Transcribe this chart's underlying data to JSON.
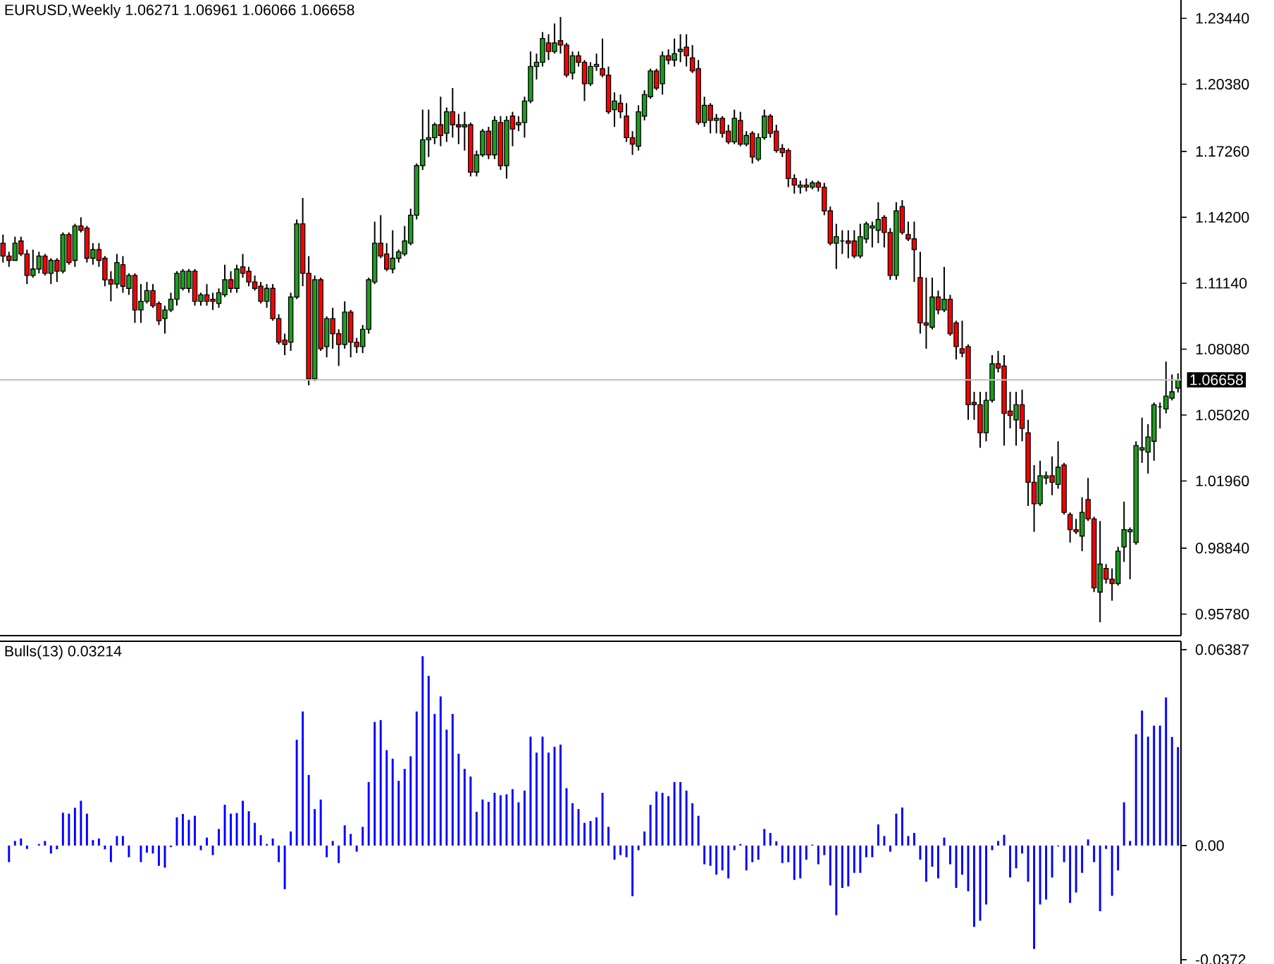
{
  "chart_data": [
    {
      "type": "candlestick",
      "title": "EURUSD,Weekly  1.06271 1.06961 1.06066 1.06658",
      "categories": [
        null,
        null,
        null,
        null,
        null,
        null,
        null,
        null,
        null,
        null,
        null,
        null,
        null,
        null,
        null,
        null,
        null,
        null,
        null,
        null,
        null,
        null,
        null,
        null,
        null,
        null,
        null,
        null,
        null,
        null,
        null,
        null,
        null,
        null,
        null,
        null,
        null,
        null,
        null,
        null,
        null,
        null,
        null,
        null,
        null,
        null,
        null,
        null,
        null,
        null,
        null,
        null,
        null,
        null,
        null,
        null,
        null,
        null,
        null,
        null,
        null,
        null,
        null,
        null,
        null,
        null,
        null,
        null,
        null,
        null,
        null,
        null,
        null,
        null,
        null,
        null,
        null,
        null,
        null,
        null,
        null,
        null,
        null,
        null,
        null,
        null,
        null,
        null,
        null,
        null,
        null,
        null,
        null,
        null,
        null,
        null,
        null,
        null,
        null,
        null,
        null,
        null,
        null,
        null,
        null,
        null,
        null,
        null,
        null,
        null,
        null,
        null,
        null,
        null,
        null,
        null,
        null,
        null,
        null,
        null,
        null,
        null,
        null,
        null,
        null,
        null,
        null,
        null,
        null,
        null,
        null,
        null,
        null,
        null,
        null,
        null,
        null,
        null,
        null,
        null,
        null,
        null,
        null,
        null,
        null,
        null,
        null,
        null,
        null,
        null,
        null,
        null,
        null,
        null,
        null,
        null,
        null,
        null,
        null,
        null,
        null,
        null,
        null,
        null,
        null,
        null,
        null,
        null,
        null,
        null,
        null,
        null,
        null,
        null,
        null,
        null,
        null,
        null,
        null,
        null,
        null,
        null,
        null,
        null,
        null,
        null,
        null,
        null,
        null,
        null,
        null,
        null,
        null,
        null,
        null,
        null,
        null
      ],
      "ohlc": [
        [
          1.13,
          1.134,
          1.121,
          1.124
        ],
        [
          1.124,
          1.126,
          1.119,
          1.122
        ],
        [
          1.122,
          1.133,
          1.122,
          1.13
        ],
        [
          1.131,
          1.133,
          1.124,
          1.125
        ],
        [
          1.125,
          1.127,
          1.111,
          1.115
        ],
        [
          1.115,
          1.127,
          1.114,
          1.118
        ],
        [
          1.118,
          1.126,
          1.116,
          1.124
        ],
        [
          1.124,
          1.125,
          1.115,
          1.116
        ],
        [
          1.116,
          1.123,
          1.111,
          1.122
        ],
        [
          1.122,
          1.123,
          1.112,
          1.117
        ],
        [
          1.117,
          1.135,
          1.116,
          1.134
        ],
        [
          1.134,
          1.135,
          1.12,
          1.121
        ],
        [
          1.122,
          1.139,
          1.119,
          1.138
        ],
        [
          1.138,
          1.142,
          1.135,
          1.136
        ],
        [
          1.137,
          1.138,
          1.121,
          1.123
        ],
        [
          1.123,
          1.13,
          1.12,
          1.127
        ],
        [
          1.127,
          1.13,
          1.119,
          1.122
        ],
        [
          1.123,
          1.124,
          1.11,
          1.113
        ],
        [
          1.113,
          1.117,
          1.103,
          1.111
        ],
        [
          1.111,
          1.125,
          1.109,
          1.121
        ],
        [
          1.12,
          1.124,
          1.107,
          1.11
        ],
        [
          1.109,
          1.116,
          1.106,
          1.115
        ],
        [
          1.115,
          1.116,
          1.093,
          1.099
        ],
        [
          1.099,
          1.111,
          1.093,
          1.103
        ],
        [
          1.103,
          1.112,
          1.102,
          1.108
        ],
        [
          1.108,
          1.111,
          1.1,
          1.101
        ],
        [
          1.102,
          1.103,
          1.092,
          1.094
        ],
        [
          1.095,
          1.101,
          1.088,
          1.099
        ],
        [
          1.099,
          1.107,
          1.098,
          1.104
        ],
        [
          1.104,
          1.117,
          1.101,
          1.116
        ],
        [
          1.109,
          1.118,
          1.108,
          1.117
        ],
        [
          1.109,
          1.118,
          1.107,
          1.117
        ],
        [
          1.117,
          1.118,
          1.101,
          1.103
        ],
        [
          1.103,
          1.107,
          1.101,
          1.106
        ],
        [
          1.106,
          1.111,
          1.101,
          1.103
        ],
        [
          1.104,
          1.107,
          1.099,
          1.103
        ],
        [
          1.102,
          1.109,
          1.1,
          1.107
        ],
        [
          1.106,
          1.12,
          1.105,
          1.113
        ],
        [
          1.113,
          1.117,
          1.107,
          1.109
        ],
        [
          1.109,
          1.12,
          1.107,
          1.118
        ],
        [
          1.119,
          1.125,
          1.114,
          1.116
        ],
        [
          1.117,
          1.119,
          1.11,
          1.112
        ],
        [
          1.112,
          1.115,
          1.108,
          1.109
        ],
        [
          1.11,
          1.112,
          1.102,
          1.103
        ],
        [
          1.103,
          1.111,
          1.1,
          1.109
        ],
        [
          1.109,
          1.111,
          1.094,
          1.095
        ],
        [
          1.095,
          1.097,
          1.083,
          1.084
        ],
        [
          1.085,
          1.088,
          1.078,
          1.083
        ],
        [
          1.084,
          1.107,
          1.08,
          1.105
        ],
        [
          1.105,
          1.141,
          1.104,
          1.139
        ],
        [
          1.139,
          1.151,
          1.11,
          1.116
        ],
        [
          1.116,
          1.124,
          1.064,
          1.067
        ],
        [
          1.067,
          1.115,
          1.066,
          1.113
        ],
        [
          1.113,
          1.114,
          1.08,
          1.081
        ],
        [
          1.082,
          1.096,
          1.077,
          1.095
        ],
        [
          1.095,
          1.1,
          1.081,
          1.088
        ],
        [
          1.088,
          1.09,
          1.073,
          1.083
        ],
        [
          1.083,
          1.103,
          1.081,
          1.098
        ],
        [
          1.098,
          1.099,
          1.077,
          1.084
        ],
        [
          1.084,
          1.086,
          1.079,
          1.082
        ],
        [
          1.082,
          1.092,
          1.079,
          1.09
        ],
        [
          1.09,
          1.114,
          1.088,
          1.113
        ],
        [
          1.112,
          1.14,
          1.111,
          1.13
        ],
        [
          1.13,
          1.143,
          1.123,
          1.124
        ],
        [
          1.125,
          1.13,
          1.117,
          1.118
        ],
        [
          1.118,
          1.136,
          1.116,
          1.123
        ],
        [
          1.123,
          1.127,
          1.121,
          1.126
        ],
        [
          1.125,
          1.138,
          1.124,
          1.131
        ],
        [
          1.13,
          1.146,
          1.129,
          1.143
        ],
        [
          1.143,
          1.167,
          1.141,
          1.166
        ],
        [
          1.166,
          1.192,
          1.164,
          1.178
        ],
        [
          1.178,
          1.192,
          1.17,
          1.179
        ],
        [
          1.179,
          1.186,
          1.176,
          1.185
        ],
        [
          1.185,
          1.198,
          1.175,
          1.18
        ],
        [
          1.181,
          1.193,
          1.177,
          1.191
        ],
        [
          1.191,
          1.202,
          1.179,
          1.185
        ],
        [
          1.185,
          1.19,
          1.176,
          1.184
        ],
        [
          1.184,
          1.191,
          1.173,
          1.185
        ],
        [
          1.185,
          1.186,
          1.161,
          1.163
        ],
        [
          1.163,
          1.173,
          1.161,
          1.171
        ],
        [
          1.171,
          1.183,
          1.17,
          1.182
        ],
        [
          1.182,
          1.184,
          1.169,
          1.171
        ],
        [
          1.171,
          1.189,
          1.169,
          1.187
        ],
        [
          1.186,
          1.189,
          1.164,
          1.166
        ],
        [
          1.166,
          1.189,
          1.16,
          1.187
        ],
        [
          1.189,
          1.191,
          1.175,
          1.183
        ],
        [
          1.185,
          1.189,
          1.182,
          1.186
        ],
        [
          1.186,
          1.198,
          1.179,
          1.196
        ],
        [
          1.196,
          1.219,
          1.195,
          1.212
        ],
        [
          1.212,
          1.218,
          1.206,
          1.214
        ],
        [
          1.214,
          1.228,
          1.212,
          1.225
        ],
        [
          1.223,
          1.227,
          1.215,
          1.219
        ],
        [
          1.219,
          1.232,
          1.218,
          1.223
        ],
        [
          1.224,
          1.235,
          1.218,
          1.222
        ],
        [
          1.222,
          1.223,
          1.207,
          1.208
        ],
        [
          1.209,
          1.219,
          1.206,
          1.217
        ],
        [
          1.217,
          1.219,
          1.212,
          1.214
        ],
        [
          1.214,
          1.215,
          1.196,
          1.204
        ],
        [
          1.204,
          1.214,
          1.203,
          1.212
        ],
        [
          1.212,
          1.218,
          1.21,
          1.213
        ],
        [
          1.211,
          1.225,
          1.207,
          1.208
        ],
        [
          1.208,
          1.212,
          1.19,
          1.191
        ],
        [
          1.192,
          1.2,
          1.184,
          1.196
        ],
        [
          1.195,
          1.199,
          1.188,
          1.191
        ],
        [
          1.189,
          1.195,
          1.177,
          1.179
        ],
        [
          1.179,
          1.182,
          1.171,
          1.176
        ],
        [
          1.175,
          1.194,
          1.173,
          1.191
        ],
        [
          1.189,
          1.201,
          1.187,
          1.199
        ],
        [
          1.198,
          1.211,
          1.197,
          1.21
        ],
        [
          1.21,
          1.211,
          1.201,
          1.202
        ],
        [
          1.204,
          1.219,
          1.199,
          1.217
        ],
        [
          1.217,
          1.22,
          1.213,
          1.215
        ],
        [
          1.215,
          1.225,
          1.212,
          1.218
        ],
        [
          1.219,
          1.227,
          1.214,
          1.22
        ],
        [
          1.221,
          1.227,
          1.212,
          1.217
        ],
        [
          1.216,
          1.222,
          1.209,
          1.21
        ],
        [
          1.211,
          1.215,
          1.185,
          1.186
        ],
        [
          1.186,
          1.198,
          1.184,
          1.194
        ],
        [
          1.194,
          1.195,
          1.181,
          1.187
        ],
        [
          1.187,
          1.19,
          1.181,
          1.188
        ],
        [
          1.188,
          1.189,
          1.179,
          1.181
        ],
        [
          1.182,
          1.185,
          1.176,
          1.177
        ],
        [
          1.177,
          1.192,
          1.176,
          1.188
        ],
        [
          1.187,
          1.191,
          1.175,
          1.176
        ],
        [
          1.176,
          1.182,
          1.175,
          1.18
        ],
        [
          1.181,
          1.182,
          1.167,
          1.17
        ],
        [
          1.169,
          1.181,
          1.168,
          1.179
        ],
        [
          1.179,
          1.192,
          1.178,
          1.189
        ],
        [
          1.189,
          1.19,
          1.179,
          1.181
        ],
        [
          1.182,
          1.185,
          1.172,
          1.173
        ],
        [
          1.174,
          1.176,
          1.17,
          1.172
        ],
        [
          1.173,
          1.174,
          1.156,
          1.16
        ],
        [
          1.16,
          1.162,
          1.153,
          1.157
        ],
        [
          1.156,
          1.159,
          1.153,
          1.157
        ],
        [
          1.157,
          1.16,
          1.154,
          1.156
        ],
        [
          1.156,
          1.159,
          1.155,
          1.158
        ],
        [
          1.158,
          1.159,
          1.154,
          1.156
        ],
        [
          1.156,
          1.158,
          1.143,
          1.145
        ],
        [
          1.145,
          1.147,
          1.129,
          1.13
        ],
        [
          1.13,
          1.139,
          1.118,
          1.133
        ],
        [
          1.131,
          1.136,
          1.125,
          1.131
        ],
        [
          1.131,
          1.136,
          1.123,
          1.13
        ],
        [
          1.131,
          1.136,
          1.123,
          1.124
        ],
        [
          1.124,
          1.139,
          1.123,
          1.133
        ],
        [
          1.132,
          1.14,
          1.13,
          1.139
        ],
        [
          1.137,
          1.14,
          1.128,
          1.138
        ],
        [
          1.136,
          1.149,
          1.13,
          1.141
        ],
        [
          1.142,
          1.143,
          1.128,
          1.135
        ],
        [
          1.135,
          1.137,
          1.113,
          1.115
        ],
        [
          1.115,
          1.149,
          1.113,
          1.145
        ],
        [
          1.147,
          1.15,
          1.134,
          1.135
        ],
        [
          1.134,
          1.14,
          1.131,
          1.132
        ],
        [
          1.132,
          1.14,
          1.112,
          1.127
        ],
        [
          1.114,
          1.126,
          1.088,
          1.093
        ],
        [
          1.093,
          1.114,
          1.081,
          1.092
        ],
        [
          1.091,
          1.114,
          1.09,
          1.105
        ],
        [
          1.105,
          1.108,
          1.097,
          1.099
        ],
        [
          1.099,
          1.119,
          1.098,
          1.104
        ],
        [
          1.104,
          1.106,
          1.087,
          1.088
        ],
        [
          1.093,
          1.094,
          1.076,
          1.082
        ],
        [
          1.081,
          1.094,
          1.077,
          1.079
        ],
        [
          1.082,
          1.083,
          1.048,
          1.055
        ],
        [
          1.056,
          1.061,
          1.048,
          1.055
        ],
        [
          1.055,
          1.061,
          1.035,
          1.042
        ],
        [
          1.042,
          1.061,
          1.038,
          1.057
        ],
        [
          1.057,
          1.078,
          1.056,
          1.074
        ],
        [
          1.074,
          1.08,
          1.07,
          1.072
        ],
        [
          1.073,
          1.078,
          1.036,
          1.051
        ],
        [
          1.052,
          1.061,
          1.044,
          1.05
        ],
        [
          1.048,
          1.061,
          1.036,
          1.055
        ],
        [
          1.055,
          1.062,
          1.038,
          1.044
        ],
        [
          1.042,
          1.048,
          1.008,
          1.019
        ],
        [
          1.019,
          1.027,
          0.996,
          1.009
        ],
        [
          1.009,
          1.029,
          1.008,
          1.022
        ],
        [
          1.021,
          1.024,
          1.018,
          1.022
        ],
        [
          1.022,
          1.031,
          1.013,
          1.019
        ],
        [
          1.018,
          1.038,
          1.016,
          1.026
        ],
        [
          1.027,
          1.028,
          1.004,
          1.005
        ],
        [
          1.004,
          1.005,
          0.991,
          0.997
        ],
        [
          0.997,
          1.002,
          0.995,
          0.996
        ],
        [
          0.994,
          1.012,
          0.987,
          1.005
        ],
        [
          1.011,
          1.021,
          1.001,
          1.002
        ],
        [
          1.002,
          1.003,
          0.968,
          0.97
        ],
        [
          0.968,
          1.001,
          0.954,
          0.981
        ],
        [
          0.979,
          0.981,
          0.972,
          0.974
        ],
        [
          0.974,
          0.979,
          0.964,
          0.972
        ],
        [
          0.972,
          0.989,
          0.971,
          0.987
        ],
        [
          0.989,
          1.01,
          0.982,
          0.997
        ],
        [
          0.996,
          0.998,
          0.974,
          0.997
        ],
        [
          0.991,
          1.038,
          0.99,
          1.036
        ],
        [
          1.034,
          1.049,
          1.028,
          1.035
        ],
        [
          1.033,
          1.046,
          1.023,
          1.04
        ],
        [
          1.038,
          1.056,
          1.029,
          1.055
        ],
        [
          1.054,
          1.056,
          1.044,
          1.054
        ],
        [
          1.053,
          1.075,
          1.051,
          1.059
        ],
        [
          1.058,
          1.069,
          1.057,
          1.061
        ],
        [
          1.06271,
          1.06961,
          1.06066,
          1.06658
        ]
      ],
      "ylim": [
        0.9478,
        1.2429
      ],
      "yticks": [
        {
          "value": 1.2344,
          "label": "1.23440"
        },
        {
          "value": 1.2038,
          "label": "1.20380"
        },
        {
          "value": 1.1726,
          "label": "1.17260"
        },
        {
          "value": 1.142,
          "label": "1.14200"
        },
        {
          "value": 1.1114,
          "label": "1.11140"
        },
        {
          "value": 1.0808,
          "label": "1.08080"
        },
        {
          "value": 1.0502,
          "label": "1.05020"
        },
        {
          "value": 1.0196,
          "label": "1.01960"
        },
        {
          "value": 0.9884,
          "label": "0.98840"
        },
        {
          "value": 0.9578,
          "label": "0.95780"
        }
      ],
      "ref_lines": [
        {
          "axis": "y",
          "value": 1.06658,
          "label": "1.06658",
          "color": "#c0c0c0"
        }
      ]
    },
    {
      "type": "bar",
      "title": "Bulls(13) 0.03214",
      "categories": [
        null,
        null,
        null,
        null,
        null,
        null,
        null,
        null,
        null,
        null,
        null,
        null,
        null,
        null,
        null,
        null,
        null,
        null,
        null,
        null,
        null,
        null,
        null,
        null,
        null,
        null,
        null,
        null,
        null,
        null,
        null,
        null,
        null,
        null,
        null,
        null,
        null,
        null,
        null,
        null,
        null,
        null,
        null,
        null,
        null,
        null,
        null,
        null,
        null,
        null,
        null,
        null,
        null,
        null,
        null,
        null,
        null,
        null,
        null,
        null,
        null,
        null,
        null,
        null,
        null,
        null,
        null,
        null,
        null,
        null,
        null,
        null,
        null,
        null,
        null,
        null,
        null,
        null,
        null,
        null,
        null,
        null,
        null,
        null,
        null,
        null,
        null,
        null,
        null,
        null,
        null,
        null,
        null,
        null,
        null,
        null,
        null,
        null,
        null,
        null,
        null,
        null,
        null,
        null,
        null,
        null,
        null,
        null,
        null,
        null,
        null,
        null,
        null,
        null,
        null,
        null,
        null,
        null,
        null,
        null,
        null,
        null,
        null,
        null,
        null,
        null,
        null,
        null,
        null,
        null,
        null,
        null,
        null,
        null,
        null,
        null,
        null,
        null,
        null,
        null,
        null,
        null,
        null,
        null,
        null,
        null,
        null,
        null,
        null,
        null,
        null,
        null,
        null,
        null,
        null,
        null,
        null,
        null,
        null,
        null,
        null,
        null,
        null,
        null,
        null,
        null,
        null,
        null,
        null,
        null,
        null,
        null,
        null,
        null,
        null,
        null,
        null,
        null,
        null,
        null,
        null,
        null,
        null,
        null,
        null,
        null,
        null,
        null,
        null,
        null,
        null,
        null,
        null,
        null,
        null,
        null,
        null
      ],
      "values": [
        null,
        -0.0054,
        0.0015,
        0.0023,
        -0.0011,
        0,
        0.0005,
        0.0015,
        -0.0026,
        -0.0012,
        0.0107,
        0.0104,
        0.0123,
        0.0146,
        0.0104,
        0.0018,
        0.0023,
        -0.0012,
        -0.0054,
        0.0031,
        0.0031,
        -0.0038,
        0,
        -0.0054,
        -0.0023,
        -0.0026,
        -0.0066,
        -0.0072,
        -0.0005,
        0.0092,
        0.0103,
        0.0084,
        0.0097,
        -0.0015,
        0.0026,
        -0.0031,
        0.0054,
        0.0133,
        0.0104,
        0.0106,
        0.0146,
        0.0112,
        0.0074,
        0.0034,
        0.0005,
        0.0023,
        -0.0054,
        -0.0142,
        0.0046,
        0.0345,
        0.0437,
        0.023,
        0.0119,
        0.015,
        -0.0038,
        0.0015,
        -0.0057,
        0.0066,
        0.0038,
        -0.002,
        0.0061,
        0.0207,
        0.0403,
        0.0409,
        0.0311,
        0.0283,
        0.0211,
        0.025,
        0.0291,
        0.0437,
        0.0617,
        0.0553,
        0.0429,
        0.0486,
        0.0378,
        0.0429,
        0.0299,
        0.025,
        0.0225,
        0.011,
        0.015,
        0.0142,
        0.0172,
        0.0164,
        0.0167,
        0.0184,
        0.0141,
        0.0179,
        0.0355,
        0.0303,
        0.0355,
        0.0303,
        0.0322,
        0.0329,
        0.0187,
        0.0138,
        0.0119,
        0.0074,
        0.008,
        0.0092,
        0.0172,
        0.0061,
        -0.0046,
        -0.0031,
        -0.0038,
        -0.0165,
        -0.0015,
        0.0046,
        0.0133,
        0.0176,
        0.0172,
        0.0161,
        0.0207,
        0.0207,
        0.0179,
        0.0138,
        0.0097,
        -0.0061,
        -0.0066,
        -0.0095,
        -0.0081,
        -0.0107,
        -0.0015,
        0.0005,
        -0.0081,
        -0.0054,
        -0.0046,
        0.0054,
        0.0041,
        0.0014,
        -0.0057,
        -0.0054,
        -0.0112,
        -0.0107,
        -0.0046,
        0.0003,
        -0.0061,
        -0.0031,
        -0.013,
        -0.0227,
        -0.0138,
        -0.0133,
        -0.0089,
        -0.0089,
        -0.0038,
        -0.0038,
        0.0069,
        0.0031,
        -0.002,
        0.0104,
        0.0124,
        0.0031,
        0.0041,
        -0.0046,
        -0.0118,
        -0.0069,
        -0.0107,
        0.0026,
        -0.0061,
        -0.0138,
        -0.0095,
        -0.0149,
        -0.0265,
        -0.0245,
        -0.0192,
        -0.0015,
        0.0015,
        0.0035,
        -0.0104,
        -0.0074,
        -0.0026,
        -0.0118,
        -0.0337,
        -0.0192,
        -0.0176,
        -0.0104,
        -0.0003,
        -0.0054,
        -0.0187,
        -0.0153,
        -0.0089,
        0.002,
        -0.0054,
        -0.0214,
        -0.0011,
        -0.0164,
        -0.0081,
        0.0141,
        0.0015,
        0.0363,
        0.044,
        0.0355,
        0.0391,
        0.0391,
        0.0483,
        0.0354,
        0.0321
      ],
      "color": "#0000ff",
      "ylim": [
        -0.0386,
        0.0666
      ],
      "yticks": [
        {
          "value": 0.06387,
          "label": "0.06387"
        },
        {
          "value": 0,
          "label": "0.00"
        },
        {
          "value": -0.0372,
          "label": "-0.0372"
        }
      ]
    }
  ]
}
